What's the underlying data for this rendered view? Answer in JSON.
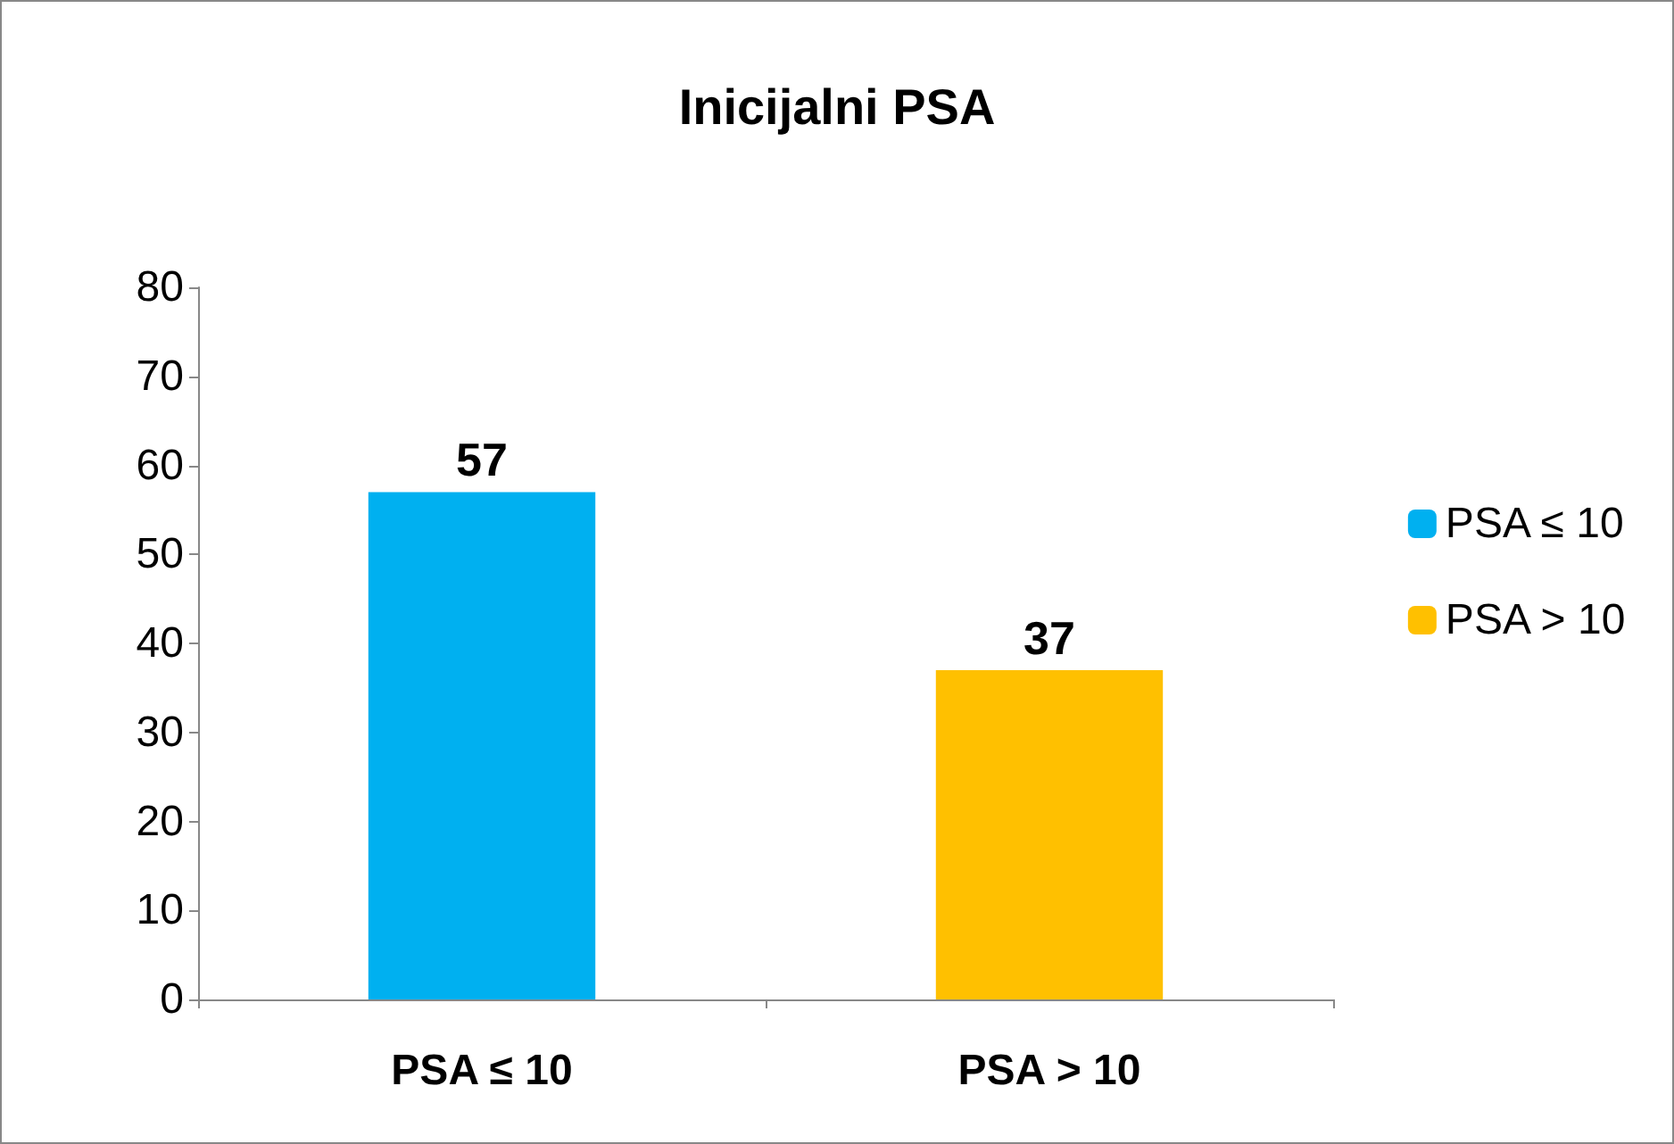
{
  "chart_data": {
    "type": "bar",
    "title": "Inicijalni PSA",
    "categories": [
      "PSA ≤ 10",
      "PSA > 10"
    ],
    "series": [
      {
        "name": "PSA ≤ 10",
        "color": "#00b0f0",
        "values": [
          57,
          null
        ]
      },
      {
        "name": "PSA > 10",
        "color": "#ffc000",
        "values": [
          null,
          37
        ]
      }
    ],
    "ylim": [
      0,
      80
    ],
    "yticks": [
      0,
      10,
      20,
      30,
      40,
      50,
      60,
      70,
      80
    ],
    "grid": false,
    "legend": "right",
    "data_labels": true
  }
}
